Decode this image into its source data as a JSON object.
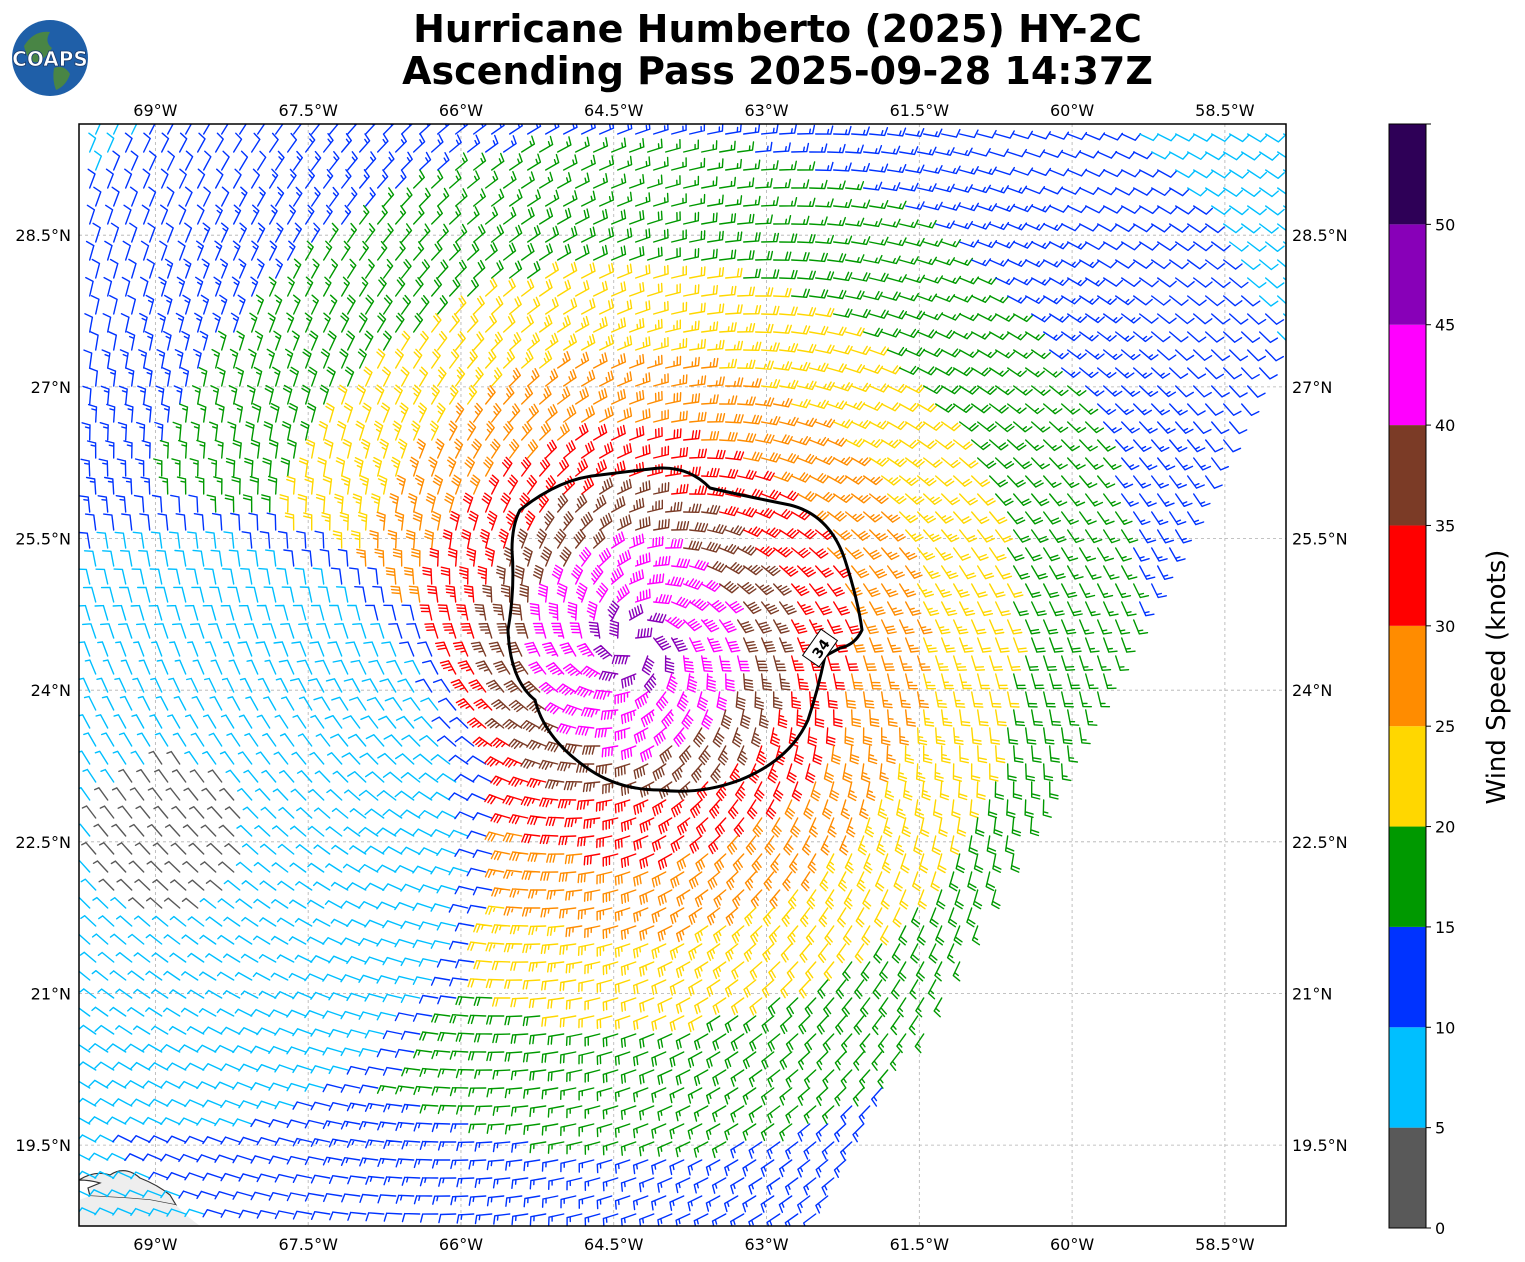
{
  "title_line1": "Hurricane Humberto (2025) HY-2C",
  "title_line2": "Ascending Pass 2025-09-28 14:37Z",
  "logo_text": "COAPS",
  "map": {
    "lon_ticks": [
      "69°W",
      "67.5°W",
      "66°W",
      "64.5°W",
      "63°W",
      "61.5°W",
      "60°W",
      "58.5°W"
    ],
    "lat_ticks": [
      "28.5°N",
      "27°N",
      "25.5°N",
      "24°N",
      "22.5°N",
      "21°N",
      "19.5°N"
    ],
    "lon_range": [
      -69.75,
      -57.9
    ],
    "lat_range": [
      18.7,
      29.6
    ],
    "storm_center": {
      "lon": -64.3,
      "lat": 24.45
    },
    "wind34_contour_label": "34"
  },
  "colorbar": {
    "title": "Wind Speed (knots)",
    "tick_labels": [
      "0",
      "5",
      "10",
      "15",
      "20",
      "25",
      "30",
      "35",
      "40",
      "45",
      "50"
    ],
    "bins": [
      {
        "min": 0,
        "max": 5,
        "color": "#595959"
      },
      {
        "min": 5,
        "max": 10,
        "color": "#00bfff"
      },
      {
        "min": 10,
        "max": 15,
        "color": "#0033ff"
      },
      {
        "min": 15,
        "max": 20,
        "color": "#009900"
      },
      {
        "min": 20,
        "max": 25,
        "color": "#ffd700"
      },
      {
        "min": 25,
        "max": 30,
        "color": "#ff8c00"
      },
      {
        "min": 30,
        "max": 35,
        "color": "#ff0000"
      },
      {
        "min": 35,
        "max": 40,
        "color": "#7b3b26"
      },
      {
        "min": 40,
        "max": 45,
        "color": "#ff00ff"
      },
      {
        "min": 45,
        "max": 50,
        "color": "#8800b8"
      },
      {
        "min": 50,
        "max": 55,
        "color": "#2e0057"
      }
    ]
  }
}
